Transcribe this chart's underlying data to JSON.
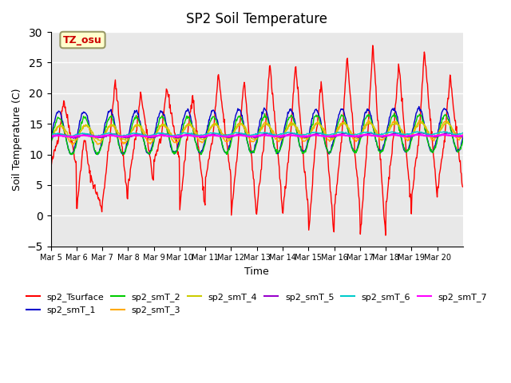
{
  "title": "SP2 Soil Temperature",
  "ylabel": "Soil Temperature (C)",
  "xlabel": "Time",
  "annotation_text": "TZ_osu",
  "annotation_color": "#cc0000",
  "annotation_bg": "#ffffcc",
  "annotation_border": "#999966",
  "ylim": [
    -5,
    30
  ],
  "yticks": [
    -5,
    0,
    5,
    10,
    15,
    20,
    25,
    30
  ],
  "xtick_labels": [
    "Mar 5",
    "Mar 6",
    "Mar 7",
    "Mar 8",
    "Mar 9",
    "Mar 10",
    "Mar 11",
    "Mar 12",
    "Mar 13",
    "Mar 14",
    "Mar 15",
    "Mar 16",
    "Mar 17",
    "Mar 18",
    "Mar 19",
    "Mar 20"
  ],
  "bg_color": "#e8e8e8",
  "grid_color": "#ffffff",
  "series_colors": {
    "sp2_Tsurface": "#ff0000",
    "sp2_smT_1": "#0000cc",
    "sp2_smT_2": "#00cc00",
    "sp2_smT_3": "#ffaa00",
    "sp2_smT_4": "#cccc00",
    "sp2_smT_5": "#9900cc",
    "sp2_smT_6": "#00cccc",
    "sp2_smT_7": "#ff00ff"
  },
  "n_days": 16,
  "pts_per_day": 48
}
